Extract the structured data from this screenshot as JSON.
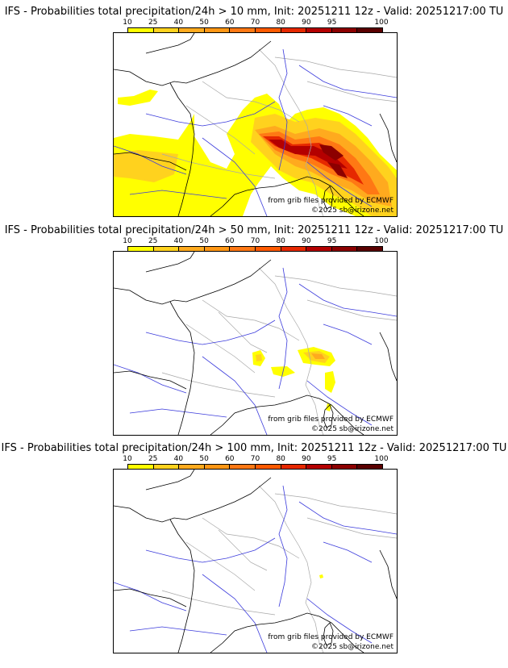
{
  "colorbar": {
    "labels": [
      "10",
      "25",
      "40",
      "50",
      "60",
      "70",
      "80",
      "90",
      "95",
      "100"
    ],
    "colors": [
      "#ffff00",
      "#ffd21e",
      "#ffaa1e",
      "#ff9614",
      "#ff7814",
      "#ff5a00",
      "#e62800",
      "#b40000",
      "#8c0000",
      "#5a0000"
    ]
  },
  "colors": {
    "coastline": "#000000",
    "rivers": "#3c3cdc",
    "borders": "#a8a8a8"
  },
  "credits": {
    "grib": "from grib files provided by ECMWF",
    "copyright": "©2025 sb@irizone.net"
  },
  "panels": [
    {
      "title": "IFS - Probabilities total precipitation/24h > 10 mm, Init: 20251211 12z - Valid: 20251217:00 TU"
    },
    {
      "title": "IFS - Probabilities total precipitation/24h > 50 mm, Init: 20251211 12z - Valid: 20251217:00 TU"
    },
    {
      "title": "IFS - Probabilities total precipitation/24h > 100 mm, Init: 20251211 12z - Valid: 20251217:00 TU"
    }
  ]
}
